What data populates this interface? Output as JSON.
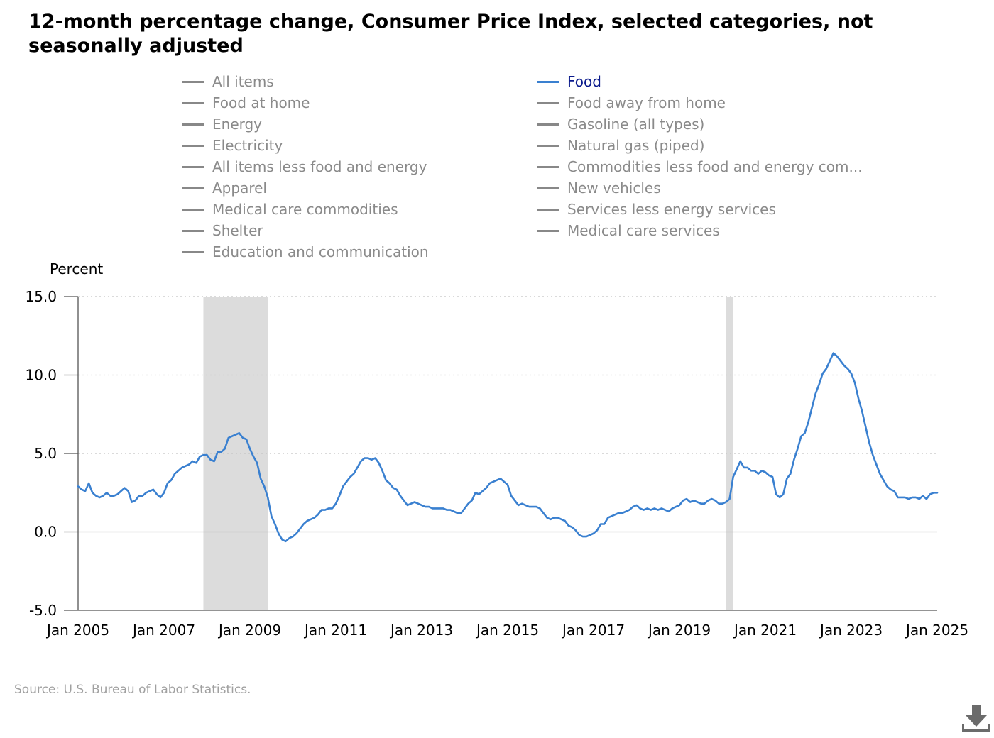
{
  "colors": {
    "active": "#3a80d0",
    "inactive": "#888888",
    "recession": "#dcdcdc"
  },
  "legend": {
    "items": [
      {
        "label": "All items",
        "active": false
      },
      {
        "label": "Food",
        "active": true
      },
      {
        "label": "Food at home",
        "active": false
      },
      {
        "label": "Food away from home",
        "active": false
      },
      {
        "label": "Energy",
        "active": false
      },
      {
        "label": "Gasoline (all types)",
        "active": false
      },
      {
        "label": "Electricity",
        "active": false
      },
      {
        "label": "Natural gas (piped)",
        "active": false
      },
      {
        "label": "All items less food and energy",
        "active": false
      },
      {
        "label": "Commodities less food and energy com...",
        "active": false
      },
      {
        "label": "Apparel",
        "active": false
      },
      {
        "label": "New vehicles",
        "active": false
      },
      {
        "label": "Medical care commodities",
        "active": false
      },
      {
        "label": "Services less energy services",
        "active": false
      },
      {
        "label": "Shelter",
        "active": false
      },
      {
        "label": "Medical care services",
        "active": false
      },
      {
        "label": "Education and communication",
        "active": false
      }
    ]
  },
  "source": "Source: U.S. Bureau of Labor Statistics.",
  "download_icon": "download-icon",
  "chart_data": {
    "type": "line",
    "title": "12-month percentage change, Consumer Price Index, selected categories, not seasonally adjusted",
    "ylabel": "Percent",
    "xlabel": "",
    "ylim": [
      -5,
      15
    ],
    "yticks": [
      "15.0",
      "10.0",
      "5.0",
      "0.0",
      "-5.0"
    ],
    "ytick_values": [
      15,
      10,
      5,
      0,
      -5
    ],
    "xlim": [
      "2005-01",
      "2025-01"
    ],
    "xticks": [
      "Jan 2005",
      "Jan 2007",
      "Jan 2009",
      "Jan 2011",
      "Jan 2013",
      "Jan 2015",
      "Jan 2017",
      "Jan 2019",
      "Jan 2021",
      "Jan 2023",
      "Jan 2025"
    ],
    "xtick_dates": [
      "2005-01",
      "2007-01",
      "2009-01",
      "2011-01",
      "2013-01",
      "2015-01",
      "2017-01",
      "2019-01",
      "2021-01",
      "2023-01",
      "2025-01"
    ],
    "grid": true,
    "legend_position": "top",
    "recessions": [
      {
        "start": "2007-12",
        "end": "2009-06"
      },
      {
        "start": "2020-02",
        "end": "2020-04"
      }
    ],
    "series": [
      {
        "name": "Food",
        "start": "2005-01",
        "values": [
          2.9,
          2.7,
          2.6,
          3.1,
          2.5,
          2.3,
          2.2,
          2.3,
          2.5,
          2.3,
          2.3,
          2.4,
          2.6,
          2.8,
          2.6,
          1.9,
          2.0,
          2.3,
          2.3,
          2.5,
          2.6,
          2.7,
          2.4,
          2.2,
          2.5,
          3.1,
          3.3,
          3.7,
          3.9,
          4.1,
          4.2,
          4.3,
          4.5,
          4.4,
          4.8,
          4.9,
          4.9,
          4.6,
          4.5,
          5.1,
          5.1,
          5.3,
          6.0,
          6.1,
          6.2,
          6.3,
          6.0,
          5.9,
          5.3,
          4.8,
          4.4,
          3.4,
          2.9,
          2.2,
          1.0,
          0.5,
          -0.1,
          -0.5,
          -0.6,
          -0.4,
          -0.3,
          -0.1,
          0.2,
          0.5,
          0.7,
          0.8,
          0.9,
          1.1,
          1.4,
          1.4,
          1.5,
          1.5,
          1.8,
          2.3,
          2.9,
          3.2,
          3.5,
          3.7,
          4.1,
          4.5,
          4.7,
          4.7,
          4.6,
          4.7,
          4.4,
          3.9,
          3.3,
          3.1,
          2.8,
          2.7,
          2.3,
          2.0,
          1.7,
          1.8,
          1.9,
          1.8,
          1.7,
          1.6,
          1.6,
          1.5,
          1.5,
          1.5,
          1.5,
          1.4,
          1.4,
          1.3,
          1.2,
          1.2,
          1.5,
          1.8,
          2.0,
          2.5,
          2.4,
          2.6,
          2.8,
          3.1,
          3.2,
          3.3,
          3.4,
          3.2,
          3.0,
          2.3,
          2.0,
          1.7,
          1.8,
          1.7,
          1.6,
          1.6,
          1.6,
          1.5,
          1.2,
          0.9,
          0.8,
          0.9,
          0.9,
          0.8,
          0.7,
          0.4,
          0.3,
          0.1,
          -0.2,
          -0.3,
          -0.3,
          -0.2,
          -0.1,
          0.1,
          0.5,
          0.5,
          0.9,
          1.0,
          1.1,
          1.2,
          1.2,
          1.3,
          1.4,
          1.6,
          1.7,
          1.5,
          1.4,
          1.5,
          1.4,
          1.5,
          1.4,
          1.5,
          1.4,
          1.3,
          1.5,
          1.6,
          1.7,
          2.0,
          2.1,
          1.9,
          2.0,
          1.9,
          1.8,
          1.8,
          2.0,
          2.1,
          2.0,
          1.8,
          1.8,
          1.9,
          2.1,
          3.5,
          4.0,
          4.5,
          4.1,
          4.1,
          3.9,
          3.9,
          3.7,
          3.9,
          3.8,
          3.6,
          3.5,
          2.4,
          2.2,
          2.4,
          3.4,
          3.7,
          4.6,
          5.3,
          6.1,
          6.3,
          7.0,
          7.9,
          8.8,
          9.4,
          10.1,
          10.4,
          10.9,
          11.4,
          11.2,
          10.9,
          10.6,
          10.4,
          10.1,
          9.5,
          8.5,
          7.7,
          6.7,
          5.7,
          4.9,
          4.3,
          3.7,
          3.3,
          2.9,
          2.7,
          2.6,
          2.2,
          2.2,
          2.2,
          2.1,
          2.2,
          2.2,
          2.1,
          2.3,
          2.1,
          2.4,
          2.5,
          2.5
        ]
      }
    ]
  }
}
